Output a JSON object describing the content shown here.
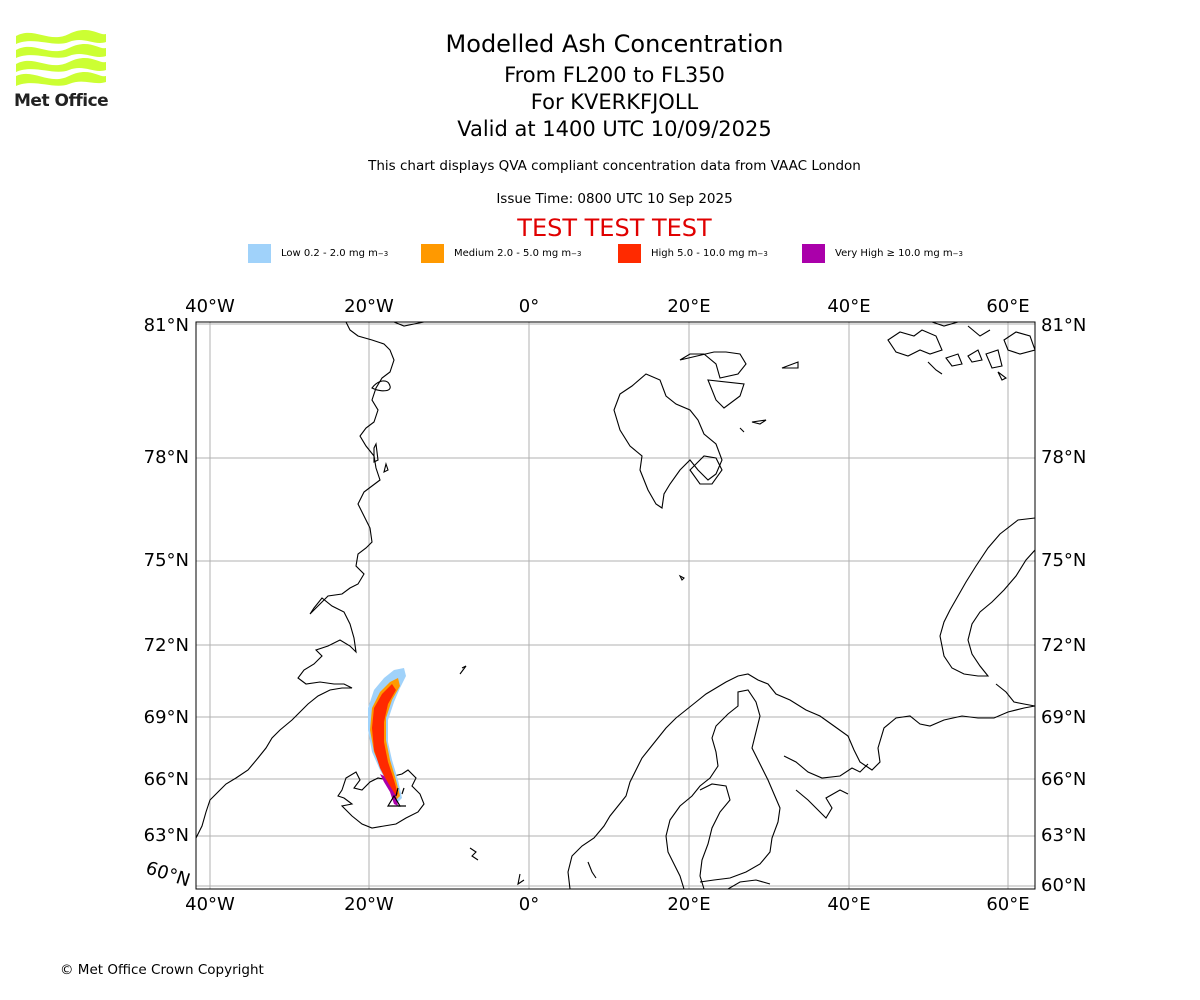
{
  "header": {
    "title": "Modelled Ash Concentration",
    "flight_levels": "From FL200 to FL350",
    "volcano": "For KVERKFJOLL",
    "valid_time": "Valid at 1400 UTC 10/09/2025",
    "description": "This chart displays QVA compliant concentration data from VAAC London",
    "issue_time": "Issue Time: 0800 UTC 10 Sep 2025",
    "test_banner": "TEST TEST TEST"
  },
  "logo": {
    "text": "Met Office",
    "color": "#ccff33"
  },
  "legend": [
    {
      "label": "Low 0.2 - 2.0 mg m",
      "unit_exp": "−3",
      "color": "#a0d2fa"
    },
    {
      "label": "Medium 2.0 - 5.0 mg m",
      "unit_exp": "−3",
      "color": "#ff9900"
    },
    {
      "label": "High 5.0 - 10.0 mg m",
      "unit_exp": "−3",
      "color": "#ff2a00"
    },
    {
      "label": "Very High ≥ 10.0 mg m",
      "unit_exp": "−3",
      "color": "#aa00aa"
    }
  ],
  "map": {
    "lon_labels": [
      "40°W",
      "20°W",
      "0°",
      "20°E",
      "40°E",
      "60°E"
    ],
    "lat_labels_left": [
      "81°N",
      "78°N",
      "75°N",
      "72°N",
      "69°N",
      "66°N",
      "63°N"
    ],
    "lat_labels_right": [
      "81°N",
      "78°N",
      "75°N",
      "72°N",
      "69°N",
      "66°N",
      "63°N",
      "60°N"
    ],
    "lat_label_corner": "60°N",
    "grid_color": "#b0b0b0"
  },
  "footer": {
    "copyright": "© Met Office Crown Copyright"
  }
}
